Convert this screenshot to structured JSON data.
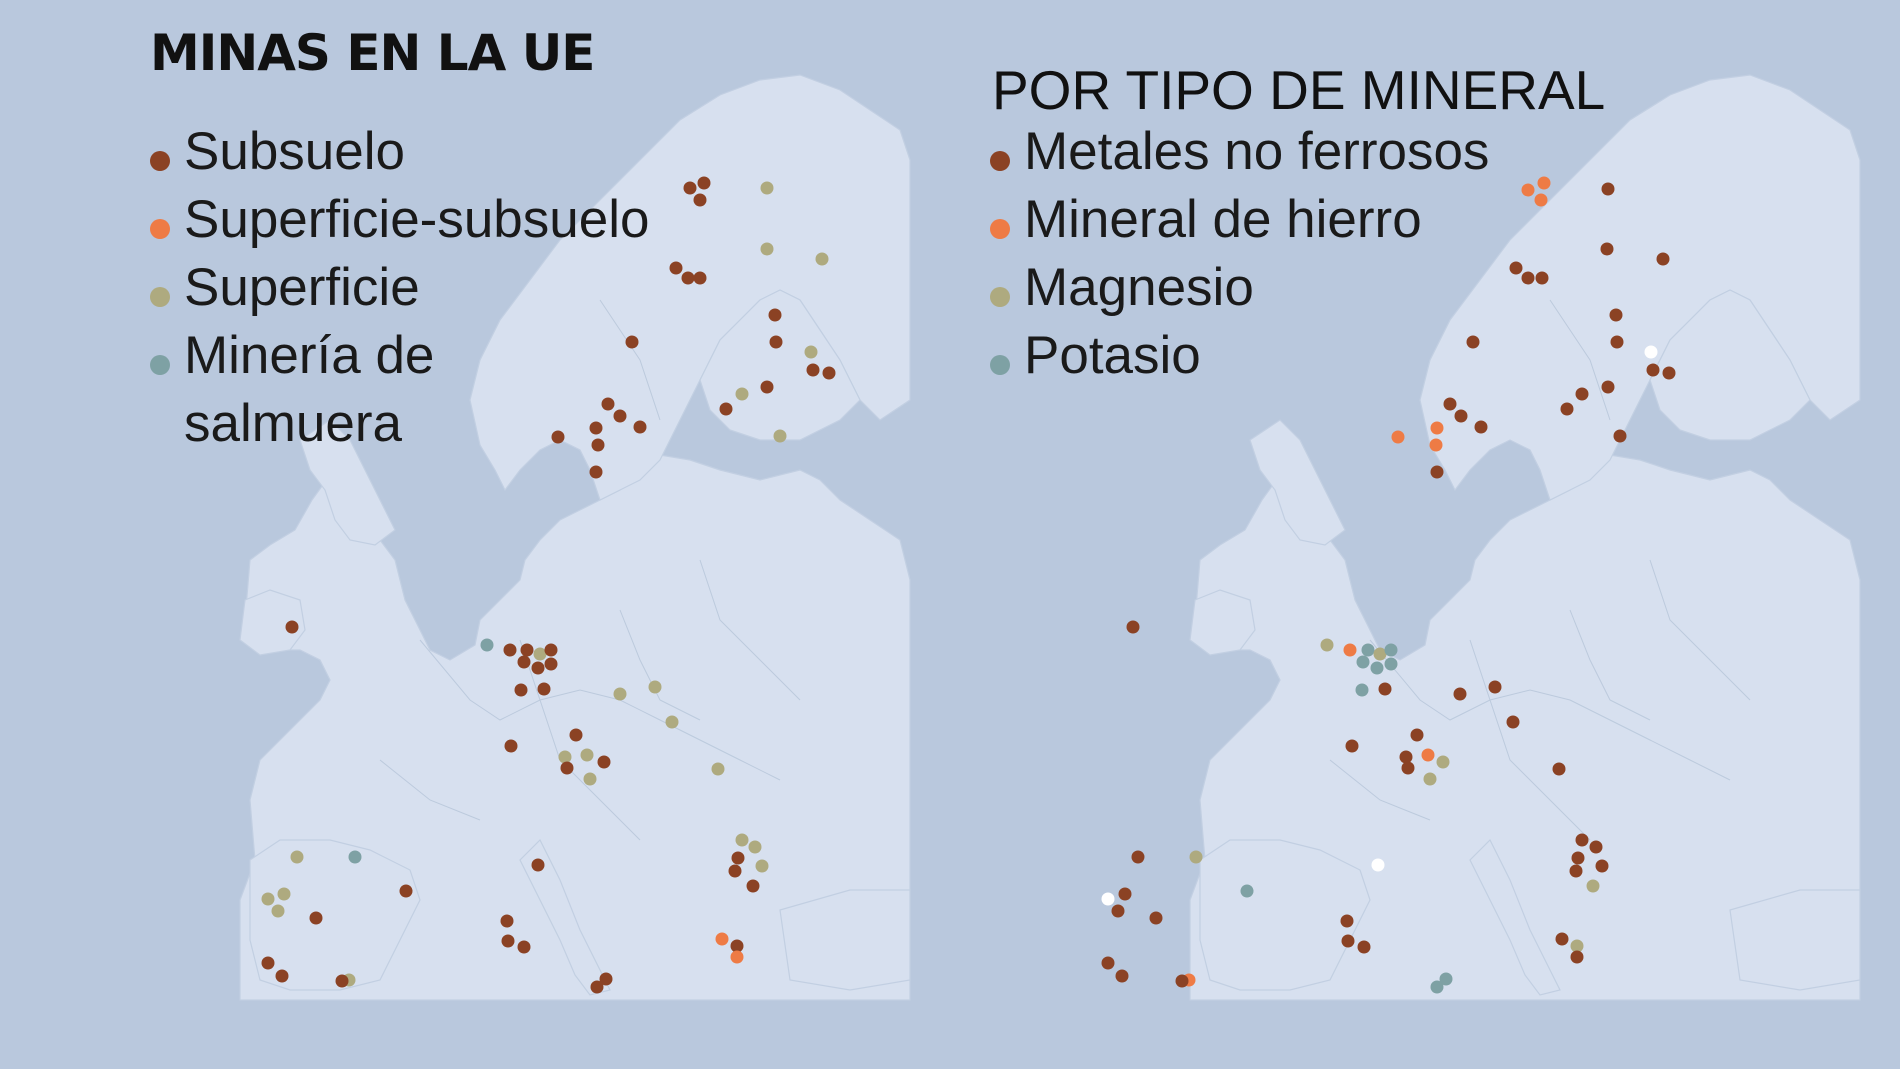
{
  "left": {
    "title": "MINAS EN LA UE",
    "legend": [
      {
        "label": "Subsuelo",
        "color": "#8b4224"
      },
      {
        "label": "Superficie-subsuelo",
        "color": "#ee7b45"
      },
      {
        "label": "Superficie",
        "color": "#aeaa7f"
      },
      {
        "label": "Minería de salmuera",
        "color": "#7ea1a4"
      }
    ]
  },
  "right": {
    "title": "POR TIPO DE MINERAL",
    "legend": [
      {
        "label": "Metales no ferrosos",
        "color": "#8b4224"
      },
      {
        "label": "Mineral de hierro",
        "color": "#ee7b45"
      },
      {
        "label": "Magnesio",
        "color": "#aeaa7f"
      },
      {
        "label": "Potasio",
        "color": "#7ea1a4"
      }
    ]
  },
  "colors": {
    "background": "#b9c8dd",
    "land": "#d7e0ef",
    "other_mineral": "#ffffff"
  }
}
